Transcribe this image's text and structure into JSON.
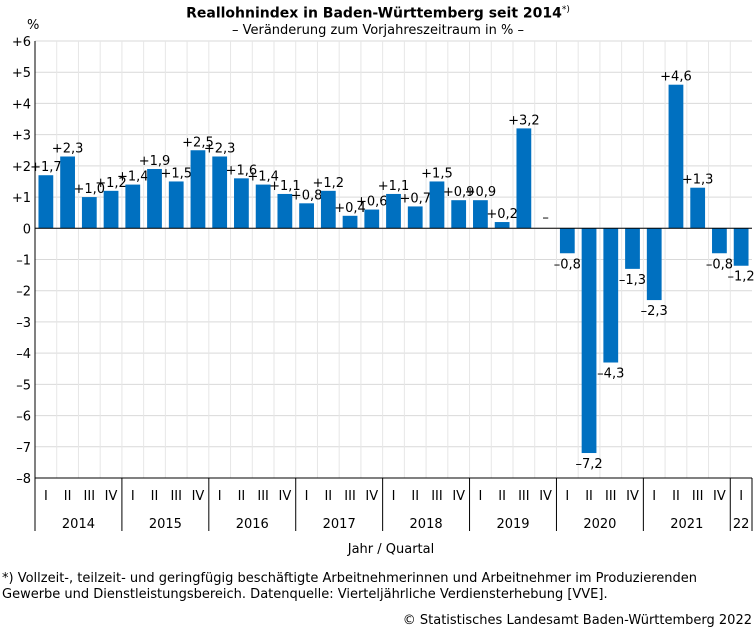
{
  "header": {
    "title": "Reallohnindex in Baden-Württemberg seit 2014",
    "title_mark": "*)",
    "subtitle": "– Veränderung zum Vorjahreszeitraum in % –"
  },
  "axis": {
    "y_unit": "%",
    "x_title": "Jahr / Quartal"
  },
  "footer": {
    "footnote": "*) Vollzeit-, teilzeit- und geringfügig beschäftigte Arbeitnehmerinnen und Arbeitnehmer im Produzierenden Gewerbe und Dienstleistungsbereich. Datenquelle: Vierteljährliche  Verdiensterhebung [VVE].",
    "source": "© Statistisches Landesamt Baden-Württemberg 2022"
  },
  "chart_data": {
    "type": "bar",
    "title": "Reallohnindex in Baden-Württemberg seit 2014*)",
    "subtitle": "– Veränderung zum Vorjahreszeitraum in % –",
    "ylabel": "%",
    "xlabel": "Jahr / Quartal",
    "ylim": [
      -8,
      6
    ],
    "yticks": [
      6,
      5,
      4,
      3,
      2,
      1,
      0,
      -1,
      -2,
      -3,
      -4,
      -5,
      -6,
      -7,
      -8
    ],
    "ytick_labels": [
      "+6",
      "+5",
      "+4",
      "+3",
      "+2",
      "+1",
      "0",
      "–1",
      "–2",
      "–3",
      "–4",
      "–5",
      "–6",
      "–7",
      "–8"
    ],
    "grid": true,
    "color": "#0070C0",
    "years": [
      {
        "label": "2014",
        "quarters": [
          "I",
          "II",
          "III",
          "IV"
        ]
      },
      {
        "label": "2015",
        "quarters": [
          "I",
          "II",
          "III",
          "IV"
        ]
      },
      {
        "label": "2016",
        "quarters": [
          "I",
          "II",
          "III",
          "IV"
        ]
      },
      {
        "label": "2017",
        "quarters": [
          "I",
          "II",
          "III",
          "IV"
        ]
      },
      {
        "label": "2018",
        "quarters": [
          "I",
          "II",
          "III",
          "IV"
        ]
      },
      {
        "label": "2019",
        "quarters": [
          "I",
          "II",
          "III",
          "IV"
        ]
      },
      {
        "label": "2020",
        "quarters": [
          "I",
          "II",
          "III",
          "IV"
        ]
      },
      {
        "label": "2021",
        "quarters": [
          "I",
          "II",
          "III",
          "IV"
        ]
      },
      {
        "label": "22",
        "quarters": [
          "I"
        ]
      }
    ],
    "values": [
      1.7,
      2.3,
      1.0,
      1.2,
      1.4,
      1.9,
      1.5,
      2.5,
      2.3,
      1.6,
      1.4,
      1.1,
      0.8,
      1.2,
      0.4,
      0.6,
      1.1,
      0.7,
      1.5,
      0.9,
      0.9,
      0.2,
      3.2,
      null,
      -0.8,
      -7.2,
      -4.3,
      -1.3,
      -2.3,
      4.6,
      1.3,
      -0.8,
      -1.2
    ],
    "value_labels": [
      "+1,7",
      "+2,3",
      "+1,0",
      "+1,2",
      "+1,4",
      "+1,9",
      "+1,5",
      "+2,5",
      "+2,3",
      "+1,6",
      "+1,4",
      "+1,1",
      "+0,8",
      "+1,2",
      "+0,4",
      "+0,6",
      "+1,1",
      "+0,7",
      "+1,5",
      "+0,9",
      "+0,9",
      "+0,2",
      "+3,2",
      "–",
      "–0,8",
      "–7,2",
      "–4,3",
      "–1,3",
      "–2,3",
      "+4,6",
      "+1,3",
      "–0,8",
      "–1,2"
    ]
  }
}
